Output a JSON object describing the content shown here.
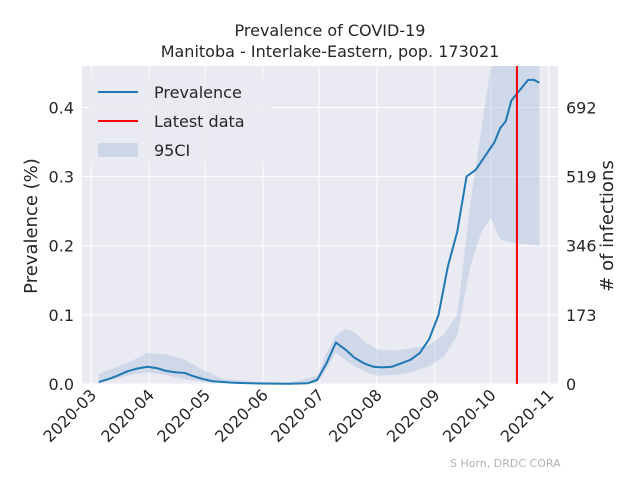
{
  "chart_data": {
    "type": "line",
    "title": "Prevalence of COVID-19",
    "subtitle": "Manitoba - Interlake-Eastern, pop. 173021",
    "xlabel": "",
    "ylabel": "Prevalence (%)",
    "y2label": "# of infections",
    "ylim": [
      0,
      0.46
    ],
    "y_ticks": [
      "0.0",
      "0.1",
      "0.2",
      "0.3",
      "0.4"
    ],
    "y2_ticks": [
      "0",
      "173",
      "346",
      "519",
      "692"
    ],
    "x_ticks": [
      "2020-03",
      "2020-04",
      "2020-05",
      "2020-06",
      "2020-07",
      "2020-08",
      "2020-09",
      "2020-10",
      "2020-11"
    ],
    "x_range": [
      "2020-02-25",
      "2020-11-06"
    ],
    "grid": true,
    "legend_position": "top-left",
    "legend": [
      "Prevalence",
      "Latest data",
      "95CI"
    ],
    "latest_data_date": "2020-10-15",
    "colors": {
      "prevalence": "#1f77b4",
      "latest": "#ff0000",
      "ci": "#b0c4de",
      "background": "#eaeaf2"
    },
    "series": [
      {
        "name": "Prevalence",
        "x": [
          "2020-03-05",
          "2020-03-10",
          "2020-03-15",
          "2020-03-20",
          "2020-03-25",
          "2020-03-31",
          "2020-04-05",
          "2020-04-10",
          "2020-04-15",
          "2020-04-20",
          "2020-04-25",
          "2020-04-30",
          "2020-05-05",
          "2020-05-10",
          "2020-05-15",
          "2020-05-20",
          "2020-05-25",
          "2020-05-31",
          "2020-06-05",
          "2020-06-15",
          "2020-06-25",
          "2020-06-30",
          "2020-07-05",
          "2020-07-10",
          "2020-07-15",
          "2020-07-20",
          "2020-07-25",
          "2020-07-30",
          "2020-08-04",
          "2020-08-09",
          "2020-08-14",
          "2020-08-19",
          "2020-08-24",
          "2020-08-29",
          "2020-09-03",
          "2020-09-08",
          "2020-09-13",
          "2020-09-18",
          "2020-09-23",
          "2020-09-28",
          "2020-10-03",
          "2020-10-06",
          "2020-10-09",
          "2020-10-12",
          "2020-10-15",
          "2020-10-18",
          "2020-10-21",
          "2020-10-24",
          "2020-10-27"
        ],
        "values": [
          0.003,
          0.007,
          0.012,
          0.018,
          0.022,
          0.025,
          0.023,
          0.019,
          0.017,
          0.016,
          0.011,
          0.007,
          0.004,
          0.003,
          0.002,
          0.0015,
          0.001,
          0.0008,
          0.0005,
          0.0003,
          0.001,
          0.006,
          0.03,
          0.06,
          0.05,
          0.038,
          0.03,
          0.025,
          0.024,
          0.025,
          0.03,
          0.035,
          0.045,
          0.065,
          0.1,
          0.17,
          0.22,
          0.3,
          0.31,
          0.33,
          0.35,
          0.37,
          0.38,
          0.41,
          0.42,
          0.43,
          0.44,
          0.44,
          0.436
        ]
      },
      {
        "name": "95CI",
        "x": [
          "2020-03-05",
          "2020-03-20",
          "2020-03-31",
          "2020-04-10",
          "2020-04-20",
          "2020-04-30",
          "2020-05-10",
          "2020-05-20",
          "2020-05-31",
          "2020-06-15",
          "2020-06-30",
          "2020-07-05",
          "2020-07-10",
          "2020-07-15",
          "2020-07-20",
          "2020-07-25",
          "2020-08-01",
          "2020-08-10",
          "2020-08-20",
          "2020-08-29",
          "2020-09-06",
          "2020-09-13",
          "2020-09-20",
          "2020-09-26",
          "2020-10-01",
          "2020-10-06",
          "2020-10-11",
          "2020-10-16",
          "2020-10-21",
          "2020-10-24",
          "2020-10-27"
        ],
        "lower": [
          0.001,
          0.012,
          0.017,
          0.013,
          0.007,
          0.003,
          0.001,
          0.0005,
          0.0002,
          0.0001,
          0.002,
          0.022,
          0.045,
          0.035,
          0.026,
          0.018,
          0.012,
          0.013,
          0.017,
          0.026,
          0.04,
          0.07,
          0.17,
          0.22,
          0.24,
          0.21,
          0.205,
          0.203,
          0.202,
          0.201,
          0.2
        ],
        "upper": [
          0.015,
          0.03,
          0.045,
          0.043,
          0.035,
          0.02,
          0.008,
          0.005,
          0.003,
          0.002,
          0.012,
          0.045,
          0.07,
          0.08,
          0.075,
          0.062,
          0.05,
          0.048,
          0.052,
          0.056,
          0.072,
          0.1,
          0.26,
          0.37,
          0.46,
          0.46,
          0.46,
          0.46,
          0.46,
          0.46,
          0.46
        ]
      }
    ]
  },
  "credit": "S Horn, DRDC CORA"
}
